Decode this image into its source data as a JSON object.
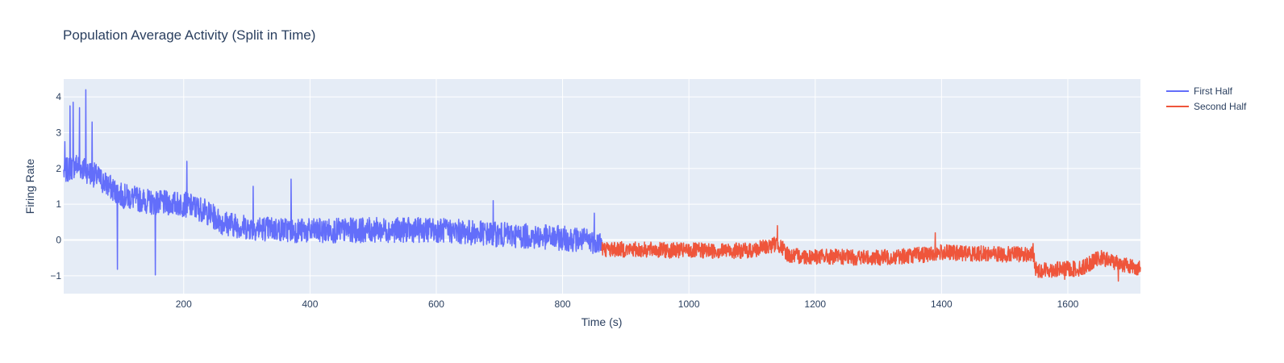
{
  "chart_data": {
    "type": "line",
    "title": "Population Average Activity (Split in Time)",
    "xlabel": "Time (s)",
    "ylabel": "Firing Rate",
    "xlim": [
      10,
      1715
    ],
    "ylim": [
      -1.5,
      4.5
    ],
    "x_ticks": [
      200,
      400,
      600,
      800,
      1000,
      1200,
      1400,
      1600
    ],
    "y_ticks": [
      -1,
      0,
      1,
      2,
      3,
      4
    ],
    "y_tick_labels": [
      "−1",
      "0",
      "1",
      "2",
      "3",
      "4"
    ],
    "grid": true,
    "legend_position": "top-right",
    "series": [
      {
        "name": "First Half",
        "color": "#636efa",
        "x_range": [
          10,
          862
        ],
        "trend": [
          [
            10,
            1.9
          ],
          [
            30,
            2.1
          ],
          [
            60,
            1.8
          ],
          [
            100,
            1.25
          ],
          [
            150,
            1.05
          ],
          [
            200,
            1.0
          ],
          [
            230,
            0.85
          ],
          [
            260,
            0.5
          ],
          [
            300,
            0.35
          ],
          [
            400,
            0.25
          ],
          [
            500,
            0.28
          ],
          [
            600,
            0.28
          ],
          [
            700,
            0.15
          ],
          [
            800,
            0.05
          ],
          [
            862,
            -0.05
          ]
        ],
        "noise_amplitude": 0.35,
        "spikes": [
          [
            12,
            2.75
          ],
          [
            20,
            3.75
          ],
          [
            25,
            3.85
          ],
          [
            35,
            3.7
          ],
          [
            45,
            4.2
          ],
          [
            55,
            3.3
          ],
          [
            95,
            -0.82
          ],
          [
            155,
            -0.98
          ],
          [
            205,
            2.2
          ],
          [
            310,
            1.5
          ],
          [
            370,
            1.7
          ],
          [
            690,
            1.1
          ],
          [
            850,
            0.75
          ]
        ]
      },
      {
        "name": "Second Half",
        "color": "#ef553b",
        "x_range": [
          862,
          1715
        ],
        "trend": [
          [
            862,
            -0.25
          ],
          [
            1000,
            -0.3
          ],
          [
            1100,
            -0.3
          ],
          [
            1140,
            -0.1
          ],
          [
            1160,
            -0.45
          ],
          [
            1300,
            -0.5
          ],
          [
            1380,
            -0.4
          ],
          [
            1400,
            -0.35
          ],
          [
            1500,
            -0.4
          ],
          [
            1545,
            -0.4
          ],
          [
            1550,
            -0.85
          ],
          [
            1620,
            -0.8
          ],
          [
            1650,
            -0.5
          ],
          [
            1715,
            -0.8
          ]
        ],
        "noise_amplitude": 0.22,
        "spikes": [
          [
            1140,
            0.4
          ],
          [
            1390,
            0.2
          ],
          [
            1545,
            -0.1
          ],
          [
            1595,
            -1.1
          ],
          [
            1680,
            -1.15
          ]
        ]
      }
    ]
  }
}
